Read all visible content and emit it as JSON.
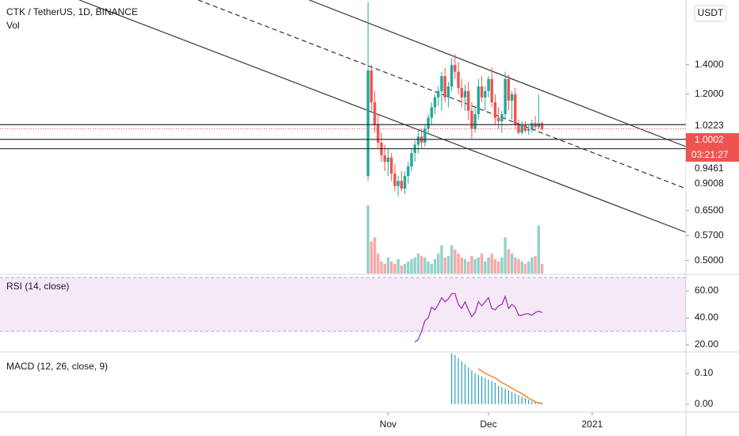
{
  "chart_data": [
    {
      "type": "candlestick",
      "title": "CTK / TetherUS, 1D, BINANCE",
      "volume_label": "Vol",
      "currency": "USDT",
      "log_scale": true,
      "up_color": "#26a69a",
      "down_color": "#ef5350",
      "open": [
        0.78,
        1.36,
        1.15,
        1.02,
        0.93,
        0.87,
        0.84,
        0.86,
        0.79,
        0.74,
        0.76,
        0.73,
        0.78,
        0.82,
        0.88,
        0.92,
        0.96,
        0.93,
        1.0,
        1.06,
        1.12,
        1.18,
        1.22,
        1.32,
        1.18,
        1.25,
        1.4,
        1.35,
        1.24,
        1.18,
        1.22,
        1.1,
        1.0,
        1.08,
        1.25,
        1.18,
        1.22,
        1.3,
        1.15,
        1.06,
        1.04,
        1.08,
        1.3,
        1.16,
        1.2,
        1.02,
        0.98,
        1.02,
        0.99,
        1.0,
        1.03,
        1.01,
        1.03
      ],
      "high": [
        1.95,
        1.4,
        1.22,
        1.08,
        0.98,
        0.92,
        0.9,
        0.88,
        0.83,
        0.78,
        0.8,
        0.8,
        0.84,
        0.9,
        0.94,
        0.99,
        1.0,
        1.02,
        1.08,
        1.15,
        1.2,
        1.25,
        1.35,
        1.38,
        1.28,
        1.45,
        1.48,
        1.42,
        1.3,
        1.26,
        1.28,
        1.15,
        1.12,
        1.3,
        1.32,
        1.25,
        1.32,
        1.38,
        1.2,
        1.12,
        1.1,
        1.35,
        1.33,
        1.22,
        1.24,
        1.05,
        1.04,
        1.04,
        1.02,
        1.05,
        1.07,
        1.2,
        1.04
      ],
      "low": [
        0.76,
        1.1,
        0.98,
        0.9,
        0.84,
        0.8,
        0.78,
        0.76,
        0.72,
        0.7,
        0.72,
        0.71,
        0.75,
        0.8,
        0.84,
        0.88,
        0.9,
        0.91,
        0.97,
        1.02,
        1.08,
        1.13,
        1.1,
        1.15,
        1.12,
        1.22,
        1.3,
        1.2,
        1.12,
        1.1,
        1.05,
        0.95,
        0.98,
        1.05,
        1.15,
        1.1,
        1.18,
        1.12,
        1.02,
        1.0,
        0.98,
        1.05,
        1.1,
        1.05,
        1.0,
        0.97,
        0.97,
        0.98,
        0.97,
        0.98,
        0.99,
        1.0,
        0.99
      ],
      "close": [
        1.36,
        1.15,
        1.02,
        0.93,
        0.87,
        0.84,
        0.86,
        0.79,
        0.74,
        0.76,
        0.73,
        0.78,
        0.82,
        0.88,
        0.92,
        0.96,
        0.93,
        1.0,
        1.06,
        1.12,
        1.18,
        1.22,
        1.32,
        1.18,
        1.25,
        1.4,
        1.35,
        1.24,
        1.18,
        1.22,
        1.1,
        1.0,
        1.08,
        1.25,
        1.18,
        1.22,
        1.3,
        1.15,
        1.06,
        1.04,
        1.08,
        1.3,
        1.16,
        1.2,
        1.02,
        0.98,
        1.02,
        0.99,
        1.0,
        1.03,
        1.01,
        1.03,
        1.0
      ],
      "volume": [
        85,
        40,
        45,
        25,
        15,
        12,
        20,
        15,
        12,
        18,
        10,
        12,
        15,
        18,
        20,
        25,
        22,
        20,
        15,
        12,
        18,
        25,
        35,
        20,
        22,
        35,
        30,
        25,
        20,
        18,
        15,
        22,
        18,
        20,
        25,
        15,
        20,
        25,
        18,
        15,
        20,
        45,
        30,
        25,
        20,
        18,
        15,
        12,
        15,
        20,
        22,
        60,
        12
      ],
      "ylim": [
        0.467,
        1.97
      ],
      "yticks": [
        {
          "value": 1.4,
          "label": "1.4000"
        },
        {
          "value": 1.2,
          "label": "1.2000"
        },
        {
          "value": 0.65,
          "label": "0.6500"
        },
        {
          "value": 0.57,
          "label": "0.5700"
        },
        {
          "value": 0.5,
          "label": "0.5000"
        }
      ],
      "levels": [
        {
          "value": 1.0223,
          "label": "1.0223"
        },
        {
          "value": 0.9461,
          "label": "0.9461"
        },
        {
          "value": 0.9008,
          "label": "0.9008"
        }
      ],
      "last_price": {
        "value": 1.0002,
        "label": "1.0002"
      },
      "countdown": "03:21:27",
      "xlim": [
        -110,
        95
      ],
      "xticks": [
        {
          "value": 6,
          "label": "Nov"
        },
        {
          "value": 36,
          "label": "Dec"
        },
        {
          "value": 67,
          "label": "2021"
        }
      ]
    },
    {
      "type": "line",
      "title": "RSI (14, close)",
      "color": "#9c27b0",
      "band": [
        30,
        70
      ],
      "values": [
        null,
        null,
        null,
        null,
        null,
        null,
        null,
        null,
        null,
        null,
        null,
        null,
        null,
        null,
        22,
        24,
        30,
        38,
        40,
        48,
        46,
        50,
        55,
        52,
        54,
        58,
        58,
        50,
        47,
        52,
        46,
        41,
        44,
        52,
        49,
        52,
        55,
        47,
        46,
        49,
        50,
        56,
        47,
        50,
        48,
        42,
        42,
        43,
        43,
        42,
        44,
        45,
        44
      ],
      "ylim": [
        15.3,
        71.8
      ],
      "yticks": [
        {
          "value": 60,
          "label": "60.00"
        },
        {
          "value": 40,
          "label": "40.00"
        },
        {
          "value": 20,
          "label": "20.00"
        }
      ]
    },
    {
      "type": "macd",
      "title": "MACD (12, 26, close, 9)",
      "histogram_color": "#26a0b8",
      "signal_color": "#ff6d00",
      "histogram": [
        null,
        null,
        null,
        null,
        null,
        null,
        null,
        null,
        null,
        null,
        null,
        null,
        null,
        null,
        null,
        null,
        null,
        null,
        null,
        null,
        null,
        null,
        null,
        null,
        null,
        0.165,
        0.16,
        0.15,
        0.14,
        0.13,
        0.12,
        0.11,
        0.1,
        0.095,
        0.09,
        0.085,
        0.08,
        0.075,
        0.07,
        0.06,
        0.055,
        0.05,
        0.045,
        0.04,
        0.035,
        0.03,
        0.025,
        0.02,
        0.015,
        0.01,
        0.008,
        0.006,
        0.005
      ],
      "signal": [
        null,
        null,
        null,
        null,
        null,
        null,
        null,
        null,
        null,
        null,
        null,
        null,
        null,
        null,
        null,
        null,
        null,
        null,
        null,
        null,
        null,
        null,
        null,
        null,
        null,
        null,
        null,
        null,
        null,
        null,
        null,
        null,
        null,
        0.115,
        0.108,
        0.1,
        0.095,
        0.09,
        0.085,
        0.078,
        0.07,
        0.065,
        0.058,
        0.052,
        0.046,
        0.04,
        0.034,
        0.027,
        0.02,
        0.014,
        0.008,
        0.004,
        0.002
      ],
      "ylim": [
        -0.026,
        0.167
      ],
      "yticks": [
        {
          "value": 0.1,
          "label": "0.10"
        },
        {
          "value": 0,
          "label": "0.00"
        }
      ]
    }
  ]
}
